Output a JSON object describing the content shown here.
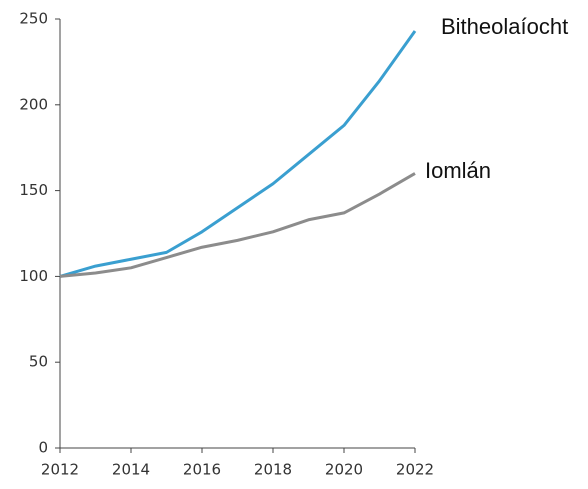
{
  "chart_data": {
    "type": "line",
    "x": [
      2012,
      2013,
      2014,
      2015,
      2016,
      2017,
      2018,
      2019,
      2020,
      2021,
      2022
    ],
    "series": [
      {
        "name": "Bitheolaíocht",
        "color": "#3a9fd0",
        "values": [
          100,
          106,
          110,
          114,
          126,
          140,
          154,
          171,
          188,
          214,
          243
        ]
      },
      {
        "name": "Iomlán",
        "color": "#8c8c8c",
        "values": [
          100,
          102,
          105,
          111,
          117,
          121,
          126,
          133,
          137,
          148,
          160
        ]
      }
    ],
    "xlim": [
      2012,
      2022
    ],
    "xticks": [
      2012,
      2014,
      2016,
      2018,
      2020,
      2022
    ],
    "ylim": [
      0,
      250
    ],
    "yticks": [
      0,
      50,
      100,
      150,
      200,
      250
    ]
  }
}
